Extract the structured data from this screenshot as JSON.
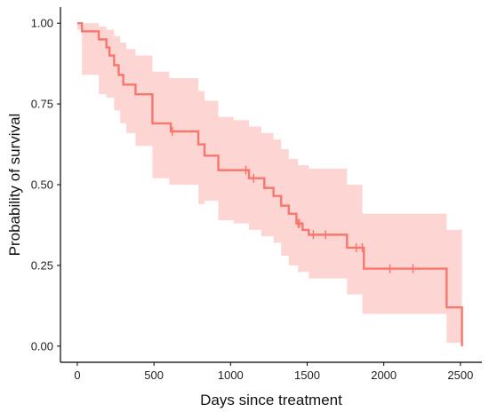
{
  "chart_data": {
    "type": "line",
    "title": "",
    "xlabel": "Days since treatment",
    "ylabel": "Probability of survival",
    "xlim": [
      -110,
      2640
    ],
    "ylim": [
      -0.05,
      1.05
    ],
    "x_ticks": [
      0,
      500,
      1000,
      1500,
      2000,
      2500
    ],
    "y_ticks": [
      0.0,
      0.25,
      0.5,
      0.75,
      1.0
    ],
    "x_tick_labels": [
      "0",
      "500",
      "1000",
      "1500",
      "2000",
      "2500"
    ],
    "y_tick_labels": [
      "0.00",
      "0.25",
      "0.50",
      "0.75",
      "1.00"
    ],
    "grid": false,
    "legend": "none",
    "color": "#f8766d",
    "band_color": "#f8766d",
    "series": [
      {
        "steps": [
          [
            0,
            1.0
          ],
          [
            30,
            0.975
          ],
          [
            140,
            0.95
          ],
          [
            190,
            0.925
          ],
          [
            210,
            0.9
          ],
          [
            240,
            0.87
          ],
          [
            270,
            0.84
          ],
          [
            300,
            0.81
          ],
          [
            380,
            0.78
          ],
          [
            490,
            0.69
          ],
          [
            610,
            0.665
          ],
          [
            790,
            0.625
          ],
          [
            830,
            0.59
          ],
          [
            920,
            0.545
          ],
          [
            1120,
            0.52
          ],
          [
            1220,
            0.49
          ],
          [
            1280,
            0.465
          ],
          [
            1330,
            0.435
          ],
          [
            1380,
            0.41
          ],
          [
            1430,
            0.38
          ],
          [
            1470,
            0.36
          ],
          [
            1510,
            0.345
          ],
          [
            1760,
            0.305
          ],
          [
            1870,
            0.24
          ],
          [
            2410,
            0.12
          ],
          [
            2510,
            0.0
          ]
        ],
        "x_end": 2510,
        "ci": [
          [
            0,
            0.98,
            1.0
          ],
          [
            30,
            0.84,
            1.0
          ],
          [
            140,
            0.78,
            0.99
          ],
          [
            190,
            0.77,
            0.98
          ],
          [
            240,
            0.73,
            0.96
          ],
          [
            280,
            0.69,
            0.94
          ],
          [
            320,
            0.66,
            0.92
          ],
          [
            380,
            0.62,
            0.9
          ],
          [
            490,
            0.52,
            0.85
          ],
          [
            600,
            0.5,
            0.83
          ],
          [
            790,
            0.44,
            0.79
          ],
          [
            830,
            0.45,
            0.76
          ],
          [
            920,
            0.39,
            0.71
          ],
          [
            1020,
            0.38,
            0.7
          ],
          [
            1120,
            0.36,
            0.68
          ],
          [
            1200,
            0.34,
            0.66
          ],
          [
            1280,
            0.32,
            0.64
          ],
          [
            1330,
            0.28,
            0.61
          ],
          [
            1380,
            0.25,
            0.58
          ],
          [
            1440,
            0.23,
            0.56
          ],
          [
            1510,
            0.21,
            0.55
          ],
          [
            1760,
            0.16,
            0.5
          ],
          [
            1860,
            0.1,
            0.41
          ],
          [
            2410,
            0.01,
            0.36
          ],
          [
            2510,
            0.0,
            0.0
          ]
        ],
        "censored": [
          [
            620,
            0.665
          ],
          [
            1100,
            0.545
          ],
          [
            1150,
            0.52
          ],
          [
            1440,
            0.38
          ],
          [
            1450,
            0.38
          ],
          [
            1540,
            0.345
          ],
          [
            1620,
            0.345
          ],
          [
            1820,
            0.305
          ],
          [
            1860,
            0.305
          ],
          [
            2040,
            0.24
          ],
          [
            2190,
            0.24
          ]
        ]
      }
    ]
  }
}
